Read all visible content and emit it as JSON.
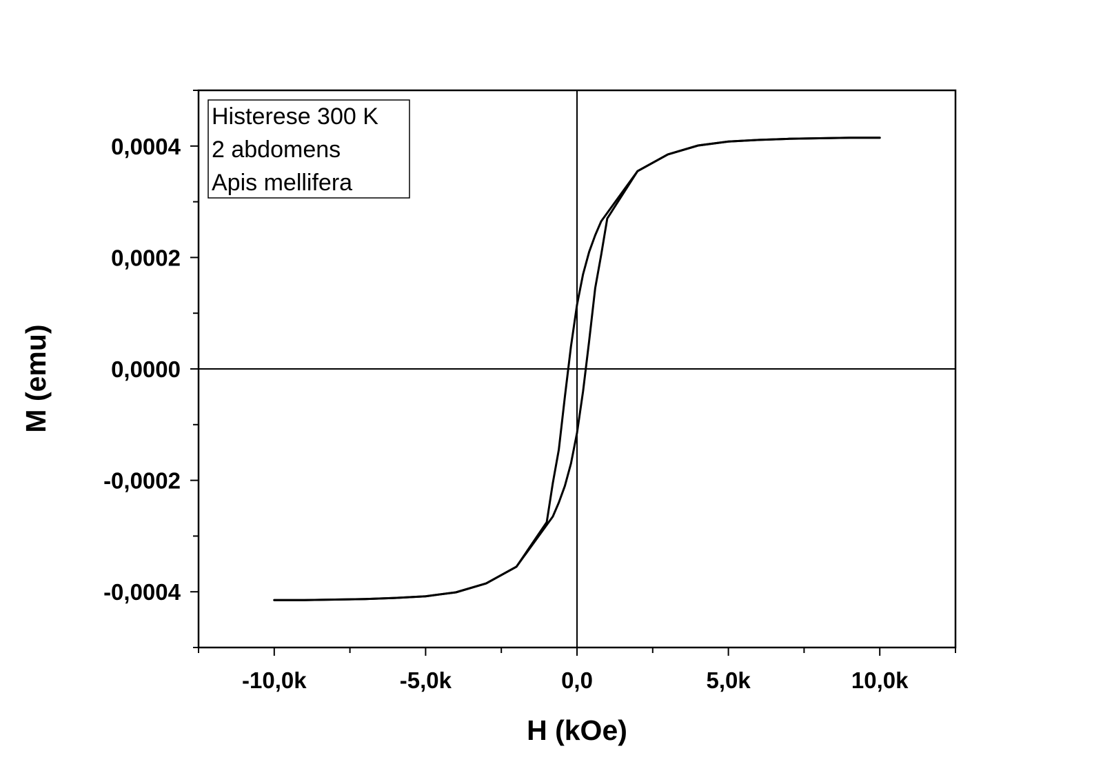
{
  "chart_data": {
    "type": "line",
    "title": "",
    "xlabel": "H (kOe)",
    "ylabel": "M (emu)",
    "xlim": [
      -12500,
      12500
    ],
    "ylim": [
      -0.0005,
      0.0005
    ],
    "x_ticks": [
      {
        "value": -10000,
        "label": "-10,0k"
      },
      {
        "value": -5000,
        "label": "-5,0k"
      },
      {
        "value": 0,
        "label": "0,0"
      },
      {
        "value": 5000,
        "label": "5,0k"
      },
      {
        "value": 10000,
        "label": "10,0k"
      }
    ],
    "y_ticks": [
      {
        "value": 0.0004,
        "label": "0,0004"
      },
      {
        "value": 0.0002,
        "label": "0,0002"
      },
      {
        "value": 0.0,
        "label": "0,0000"
      },
      {
        "value": -0.0002,
        "label": "-0,0002"
      },
      {
        "value": -0.0004,
        "label": "-0,0004"
      }
    ],
    "grid": false,
    "zero_lines": true,
    "line_color": "#000000",
    "legend": {
      "placement": "top-left",
      "lines": [
        "Histerese 300 K",
        "2 abdomens",
        "Apis mellifera"
      ]
    },
    "series": [
      {
        "x": [
          10000,
          9000,
          8000,
          7000,
          6000,
          5000,
          4000,
          3000,
          2000,
          1000,
          800,
          600,
          400,
          200,
          0,
          -200,
          -400,
          -600,
          -800,
          -1000,
          -2000,
          -3000,
          -4000,
          -5000,
          -6000,
          -7000,
          -8000,
          -9000,
          -10000
        ],
        "y": [
          0.000415,
          0.000415,
          0.000414,
          0.000413,
          0.000411,
          0.000408,
          0.000401,
          0.000385,
          0.000355,
          0.00028,
          0.000265,
          0.00024,
          0.00021,
          0.00017,
          0.000115,
          4e-05,
          -5e-05,
          -0.000145,
          -0.000205,
          -0.000275,
          -0.000355,
          -0.000385,
          -0.000401,
          -0.000408,
          -0.000411,
          -0.000413,
          -0.000414,
          -0.000415,
          -0.000415
        ]
      },
      {
        "x": [
          -10000,
          -9000,
          -8000,
          -7000,
          -6000,
          -5000,
          -4000,
          -3000,
          -2000,
          -1000,
          -800,
          -600,
          -400,
          -200,
          0,
          200,
          400,
          600,
          800,
          1000,
          2000,
          3000,
          4000,
          5000,
          6000,
          7000,
          8000,
          9000,
          10000
        ],
        "y": [
          -0.000415,
          -0.000415,
          -0.000414,
          -0.000413,
          -0.000411,
          -0.000408,
          -0.000401,
          -0.000385,
          -0.000355,
          -0.00028,
          -0.000265,
          -0.00024,
          -0.00021,
          -0.00017,
          -0.000115,
          -4e-05,
          5e-05,
          0.000145,
          0.000205,
          0.00027,
          0.000355,
          0.000385,
          0.000401,
          0.000408,
          0.000411,
          0.000413,
          0.000414,
          0.000415,
          0.000415
        ]
      }
    ]
  }
}
